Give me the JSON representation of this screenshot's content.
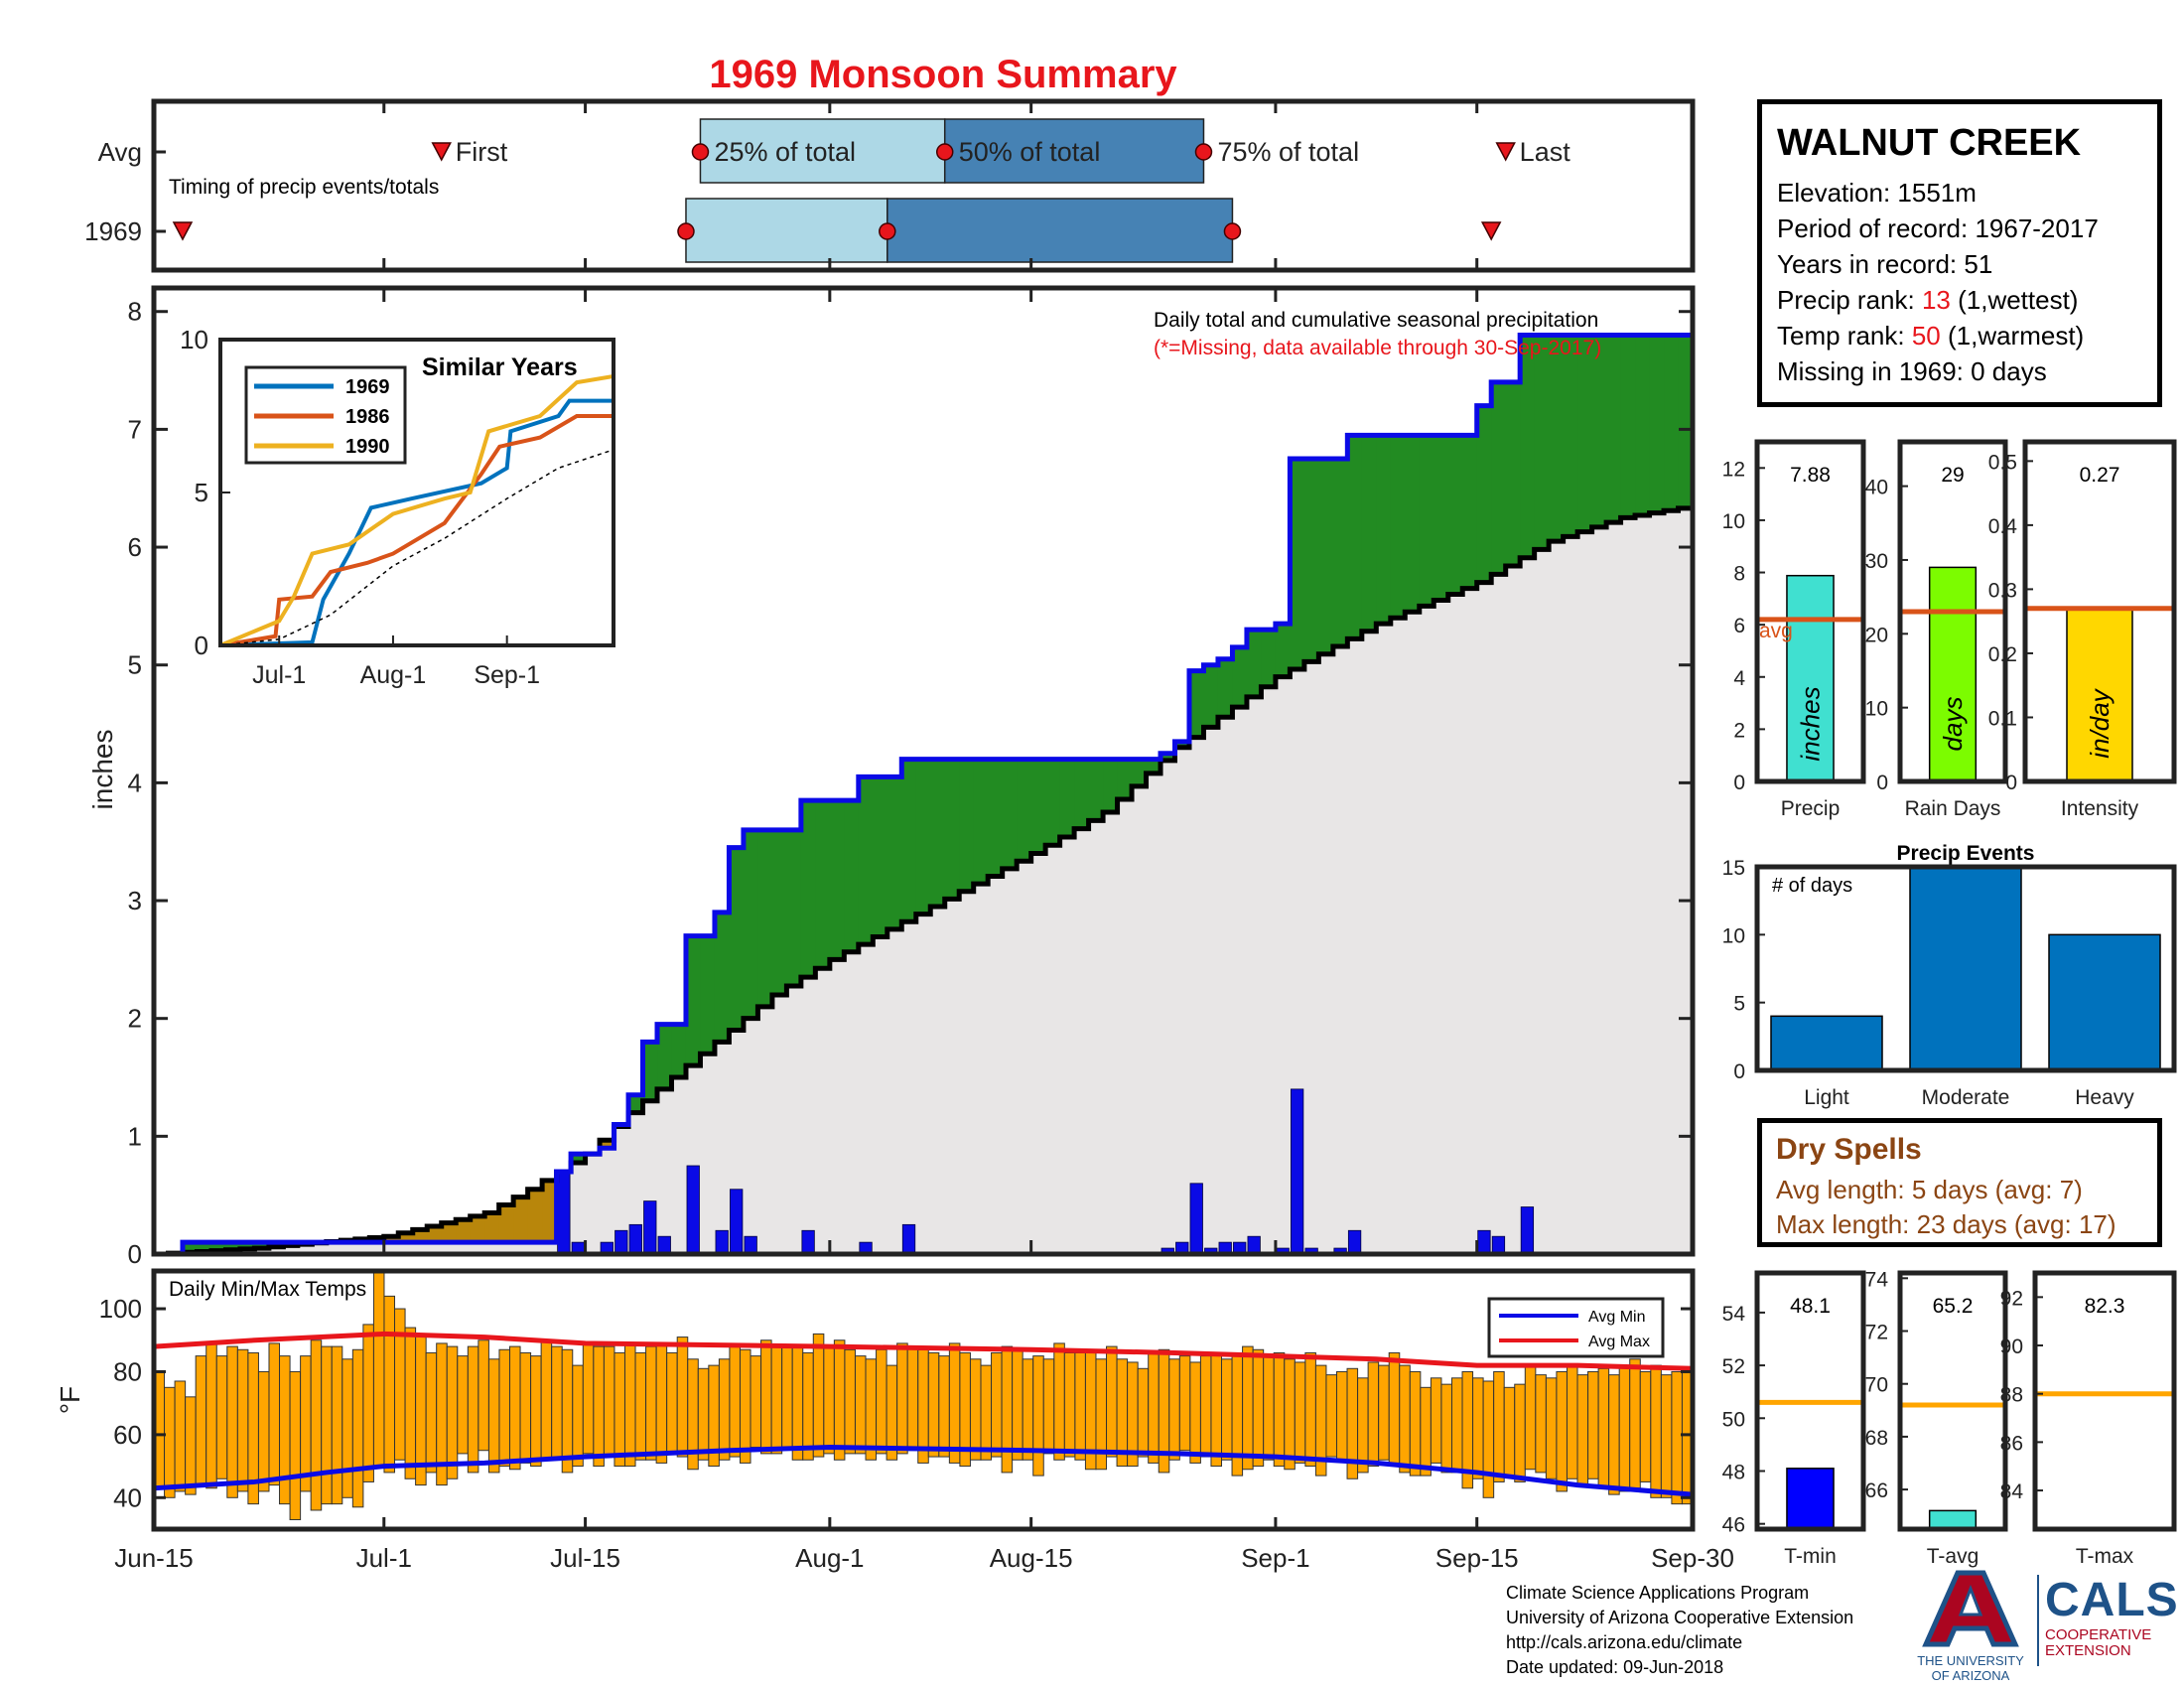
{
  "title": "1969 Monsoon Summary",
  "station": {
    "name": "WALNUT CREEK",
    "elevation_label": "Elevation: ",
    "elevation": "1551m",
    "period_label": "Period of record: ",
    "period": "1967-2017",
    "years_label": "Years in record: ",
    "years": "51",
    "precip_rank_label": "Precip rank: ",
    "precip_rank": "13",
    "precip_rank_note": " (1,wettest)",
    "temp_rank_label": "Temp rank: ",
    "temp_rank": "50",
    "temp_rank_note": " (1,warmest)",
    "missing": "Missing in 1969: 0 days"
  },
  "dry_spells": {
    "title": "Dry Spells",
    "avg_line": "Avg length: 5 days (avg: 7)",
    "max_line": "Max length: 23 days (avg: 17)"
  },
  "footer": {
    "line1": "Climate Science Applications Program",
    "line2": "University of Arizona Cooperative Extension",
    "line3": "http://cals.arizona.edu/climate",
    "line4": " Date updated: 09-Jun-2018"
  },
  "logos": {
    "ua_line1": "THE UNIVERSITY",
    "ua_line2": "OF ARIZONA",
    "cals": "CALS",
    "cals_line1": "COOPERATIVE",
    "cals_line2": "EXTENSION"
  },
  "colors": {
    "title": "#e8161c",
    "cumulative_1969": "#0a0ae6",
    "above_avg_fill": "#228b22",
    "below_avg_fill": "#b8860b",
    "climo_fill": "#e8e6e6",
    "daily_bar": "#0a0ae6",
    "temp_bar": "#ffa500",
    "avg_max": "#e8161c",
    "avg_min": "#0a0ae6",
    "light_blue": "#add8e6",
    "steel_blue": "#4682b4",
    "event_bar": "#0072bd"
  },
  "chart_data": [
    {
      "id": "timing",
      "type": "timeline",
      "subtitle": "Timing of precip events/totals",
      "rows": [
        "Avg",
        "1969"
      ],
      "markers_labels": [
        "First",
        "25% of total",
        "50% of total",
        "75% of total",
        "Last"
      ],
      "avg": {
        "first": "Jul-5",
        "p25": "Jul-23",
        "p50": "Aug-9",
        "p75": "Aug-27",
        "last": "Sep-17"
      },
      "y1969": {
        "first": "Jun-17",
        "p25": "Jul-22",
        "p50": "Aug-5",
        "p75": "Aug-29",
        "last": "Sep-16"
      }
    },
    {
      "id": "seasonal",
      "type": "area",
      "title": "Daily total and cumulative seasonal precipitation",
      "subtitle": "(*=Missing, data available through 30-Sep-2017)",
      "ylabel": "inches",
      "ylim": [
        0,
        8.2
      ],
      "yticks": [
        0,
        1,
        2,
        3,
        4,
        5,
        6,
        7,
        8
      ],
      "xticks": [
        "Jun-15",
        "Jul-1",
        "Jul-15",
        "Aug-1",
        "Aug-15",
        "Sep-1",
        "Sep-15",
        "Sep-30"
      ],
      "series": [
        {
          "name": "1969 cumulative",
          "points": [
            [
              "Jun-15",
              0.0
            ],
            [
              "Jun-17",
              0.1
            ],
            [
              "Jun-30",
              0.1
            ],
            [
              "Jul-12",
              0.1
            ],
            [
              "Jul-13",
              0.7
            ],
            [
              "Jul-14",
              0.85
            ],
            [
              "Jul-16",
              0.9
            ],
            [
              "Jul-17",
              1.1
            ],
            [
              "Jul-18",
              1.35
            ],
            [
              "Jul-19",
              1.8
            ],
            [
              "Jul-20",
              1.95
            ],
            [
              "Jul-22",
              2.7
            ],
            [
              "Jul-24",
              2.9
            ],
            [
              "Jul-25",
              3.45
            ],
            [
              "Jul-26",
              3.6
            ],
            [
              "Jul-30",
              3.85
            ],
            [
              "Aug-3",
              4.05
            ],
            [
              "Aug-6",
              4.2
            ],
            [
              "Aug-24",
              4.25
            ],
            [
              "Aug-25",
              4.35
            ],
            [
              "Aug-26",
              4.95
            ],
            [
              "Aug-27",
              5.0
            ],
            [
              "Aug-28",
              5.05
            ],
            [
              "Aug-29",
              5.15
            ],
            [
              "Aug-30",
              5.3
            ],
            [
              "Sep-1",
              5.35
            ],
            [
              "Sep-2",
              6.75
            ],
            [
              "Sep-6",
              6.95
            ],
            [
              "Sep-15",
              7.2
            ],
            [
              "Sep-16",
              7.4
            ],
            [
              "Sep-18",
              7.8
            ],
            [
              "Sep-30",
              7.8
            ]
          ]
        },
        {
          "name": "avg cumulative",
          "points": [
            [
              "Jun-15",
              0.0
            ],
            [
              "Jun-22",
              0.05
            ],
            [
              "Jul-1",
              0.15
            ],
            [
              "Jul-8",
              0.35
            ],
            [
              "Jul-11",
              0.55
            ],
            [
              "Jul-15",
              0.85
            ],
            [
              "Jul-18",
              1.2
            ],
            [
              "Jul-22",
              1.6
            ],
            [
              "Jul-28",
              2.2
            ],
            [
              "Aug-1",
              2.5
            ],
            [
              "Aug-8",
              2.95
            ],
            [
              "Aug-15",
              3.4
            ],
            [
              "Aug-20",
              3.75
            ],
            [
              "Aug-25",
              4.3
            ],
            [
              "Sep-1",
              4.9
            ],
            [
              "Sep-8",
              5.35
            ],
            [
              "Sep-15",
              5.7
            ],
            [
              "Sep-20",
              6.05
            ],
            [
              "Sep-25",
              6.25
            ],
            [
              "Sep-30",
              6.35
            ]
          ]
        }
      ],
      "daily": [
        [
          "Jul-13",
          0.7
        ],
        [
          "Jul-14",
          0.1
        ],
        [
          "Jul-16",
          0.1
        ],
        [
          "Jul-17",
          0.2
        ],
        [
          "Jul-18",
          0.25
        ],
        [
          "Jul-19",
          0.45
        ],
        [
          "Jul-20",
          0.15
        ],
        [
          "Jul-22",
          0.75
        ],
        [
          "Jul-24",
          0.2
        ],
        [
          "Jul-25",
          0.55
        ],
        [
          "Jul-26",
          0.15
        ],
        [
          "Jul-30",
          0.2
        ],
        [
          "Aug-3",
          0.1
        ],
        [
          "Aug-6",
          0.25
        ],
        [
          "Aug-24",
          0.05
        ],
        [
          "Aug-25",
          0.1
        ],
        [
          "Aug-26",
          0.6
        ],
        [
          "Aug-27",
          0.05
        ],
        [
          "Aug-28",
          0.1
        ],
        [
          "Aug-29",
          0.1
        ],
        [
          "Aug-30",
          0.15
        ],
        [
          "Sep-1",
          0.05
        ],
        [
          "Sep-2",
          1.4
        ],
        [
          "Sep-3",
          0.05
        ],
        [
          "Sep-5",
          0.05
        ],
        [
          "Sep-6",
          0.2
        ],
        [
          "Sep-15",
          0.2
        ],
        [
          "Sep-16",
          0.15
        ],
        [
          "Sep-18",
          0.4
        ]
      ]
    },
    {
      "id": "similar",
      "type": "line",
      "title": "Similar Years",
      "ylim": [
        0,
        10
      ],
      "yticks": [
        0,
        5,
        10
      ],
      "xticks": [
        "Jul-1",
        "Aug-1",
        "Sep-1"
      ],
      "series": [
        {
          "name": "1969",
          "color": "#0072bd",
          "points": [
            [
              "Jun-15",
              0
            ],
            [
              "Jul-10",
              0.1
            ],
            [
              "Jul-13",
              1.5
            ],
            [
              "Jul-20",
              3.0
            ],
            [
              "Jul-26",
              4.5
            ],
            [
              "Aug-6",
              4.8
            ],
            [
              "Aug-25",
              5.3
            ],
            [
              "Sep-1",
              5.8
            ],
            [
              "Sep-2",
              7.0
            ],
            [
              "Sep-15",
              7.5
            ],
            [
              "Sep-18",
              8.0
            ],
            [
              "Sep-30",
              8.0
            ]
          ]
        },
        {
          "name": "1986",
          "color": "#d95319",
          "points": [
            [
              "Jun-15",
              0
            ],
            [
              "Jun-30",
              0.3
            ],
            [
              "Jul-1",
              1.5
            ],
            [
              "Jul-10",
              1.6
            ],
            [
              "Jul-15",
              2.4
            ],
            [
              "Jul-25",
              2.7
            ],
            [
              "Aug-1",
              3.0
            ],
            [
              "Aug-15",
              4.0
            ],
            [
              "Aug-25",
              5.6
            ],
            [
              "Aug-30",
              6.5
            ],
            [
              "Sep-10",
              6.8
            ],
            [
              "Sep-20",
              7.5
            ],
            [
              "Sep-30",
              7.5
            ]
          ]
        },
        {
          "name": "1990",
          "color": "#edb120",
          "points": [
            [
              "Jun-15",
              0
            ],
            [
              "Jul-1",
              0.8
            ],
            [
              "Jul-5",
              1.6
            ],
            [
              "Jul-10",
              3.0
            ],
            [
              "Jul-20",
              3.3
            ],
            [
              "Aug-1",
              4.3
            ],
            [
              "Aug-15",
              4.8
            ],
            [
              "Aug-22",
              5.0
            ],
            [
              "Aug-27",
              7.0
            ],
            [
              "Sep-10",
              7.5
            ],
            [
              "Sep-20",
              8.6
            ],
            [
              "Sep-30",
              8.8
            ]
          ]
        },
        {
          "name": "avg",
          "color": "#000000",
          "dashed": true,
          "points": [
            [
              "Jun-15",
              0
            ],
            [
              "Jul-1",
              0.2
            ],
            [
              "Jul-15",
              1.0
            ],
            [
              "Aug-1",
              2.6
            ],
            [
              "Aug-15",
              3.5
            ],
            [
              "Sep-1",
              4.8
            ],
            [
              "Sep-15",
              5.8
            ],
            [
              "Sep-30",
              6.4
            ]
          ]
        }
      ]
    },
    {
      "id": "temps",
      "type": "bar",
      "title": "Daily Min/Max Temps",
      "ylabel": "°F",
      "ylim": [
        30,
        112
      ],
      "yticks": [
        40,
        60,
        80,
        100
      ],
      "legend": [
        "Avg Min",
        "Avg Max"
      ],
      "min": [
        43,
        40,
        42,
        41,
        44,
        43,
        46,
        40,
        42,
        38,
        42,
        44,
        38,
        33,
        42,
        36,
        38,
        38,
        40,
        37,
        45,
        50,
        48,
        52,
        46,
        44,
        48,
        44,
        46,
        54,
        48,
        55,
        48,
        50,
        49,
        51,
        50,
        52,
        52,
        48,
        50,
        54,
        50,
        53,
        50,
        50,
        52,
        52,
        51,
        54,
        53,
        49,
        52,
        50,
        52,
        53,
        51,
        56,
        54,
        54,
        56,
        52,
        52,
        53,
        54,
        52,
        54,
        54,
        52,
        54,
        52,
        54,
        55,
        51,
        53,
        53,
        51,
        50,
        52,
        52,
        53,
        48,
        52,
        52,
        47,
        54,
        52,
        53,
        52,
        49,
        49,
        53,
        50,
        50,
        53,
        51,
        48,
        52,
        55,
        51,
        53,
        50,
        52,
        47,
        49,
        50,
        52,
        50,
        49,
        51,
        50,
        47,
        53,
        52,
        46,
        48,
        50,
        52,
        51,
        48,
        47,
        47,
        51,
        48,
        48,
        43,
        46,
        40,
        45,
        47,
        45,
        49,
        48,
        46,
        42,
        46,
        44,
        46,
        43,
        41,
        42,
        43,
        45,
        40,
        40,
        38,
        38
      ],
      "max": [
        80,
        75,
        77,
        72,
        85,
        89,
        85,
        88,
        87,
        86,
        80,
        89,
        85,
        80,
        85,
        90,
        88,
        88,
        84,
        87,
        95,
        112,
        104,
        100,
        94,
        92,
        86,
        89,
        88,
        85,
        88,
        90,
        84,
        87,
        88,
        86,
        85,
        90,
        88,
        87,
        82,
        89,
        88,
        88,
        86,
        89,
        86,
        88,
        89,
        86,
        91,
        84,
        81,
        82,
        84,
        88,
        87,
        85,
        90,
        88,
        88,
        88,
        86,
        92,
        88,
        90,
        87,
        85,
        84,
        87,
        82,
        89,
        88,
        87,
        86,
        85,
        89,
        86,
        84,
        82,
        86,
        88,
        87,
        84,
        85,
        84,
        89,
        86,
        86,
        87,
        84,
        88,
        84,
        83,
        81,
        86,
        87,
        84,
        85,
        83,
        85,
        86,
        84,
        85,
        88,
        87,
        85,
        86,
        84,
        83,
        86,
        82,
        79,
        80,
        81,
        78,
        83,
        82,
        86,
        82,
        80,
        75,
        78,
        76,
        78,
        80,
        78,
        77,
        80,
        75,
        76,
        82,
        79,
        78,
        80,
        82,
        79,
        80,
        81,
        79,
        82,
        84,
        80,
        82,
        79,
        80,
        80
      ],
      "avg_min_points": [
        [
          "Jun-15",
          43
        ],
        [
          "Jun-22",
          45
        ],
        [
          "Jun-27",
          48
        ],
        [
          "Jul-1",
          50
        ],
        [
          "Jul-8",
          51
        ],
        [
          "Jul-15",
          53
        ],
        [
          "Jul-25",
          55
        ],
        [
          "Aug-1",
          56
        ],
        [
          "Aug-15",
          55
        ],
        [
          "Aug-25",
          54
        ],
        [
          "Sep-1",
          53
        ],
        [
          "Sep-8",
          51
        ],
        [
          "Sep-15",
          48
        ],
        [
          "Sep-22",
          44
        ],
        [
          "Sep-30",
          41
        ]
      ],
      "avg_max_points": [
        [
          "Jun-15",
          88
        ],
        [
          "Jun-22",
          90
        ],
        [
          "Jul-1",
          92
        ],
        [
          "Jul-8",
          91
        ],
        [
          "Jul-15",
          89
        ],
        [
          "Aug-1",
          88
        ],
        [
          "Aug-15",
          87
        ],
        [
          "Aug-25",
          86
        ],
        [
          "Sep-1",
          85
        ],
        [
          "Sep-8",
          84
        ],
        [
          "Sep-15",
          82
        ],
        [
          "Sep-22",
          82
        ],
        [
          "Sep-30",
          81
        ]
      ]
    },
    {
      "id": "precip_bar",
      "type": "bar",
      "category": "Precip",
      "value": 7.88,
      "value_label": "7.88",
      "avg": 6.2,
      "avg_label": "avg",
      "unit": "inches",
      "ylim": [
        0,
        13
      ],
      "yticks": [
        0,
        2,
        4,
        6,
        8,
        10,
        12
      ],
      "color": "#40e0d0"
    },
    {
      "id": "raindays_bar",
      "type": "bar",
      "category": "Rain Days",
      "value": 29,
      "value_label": "29",
      "avg": 23,
      "unit": "days",
      "ylim": [
        0,
        46
      ],
      "yticks": [
        0,
        10,
        20,
        30,
        40
      ],
      "color": "#7cfc00"
    },
    {
      "id": "intensity_bar",
      "type": "bar",
      "category": "Intensity",
      "value": 0.27,
      "value_label": "0.27",
      "avg": 0.27,
      "unit": "in/day",
      "ylim": [
        0,
        0.53
      ],
      "yticks": [
        0,
        0.1,
        0.2,
        0.3,
        0.4,
        0.5
      ],
      "color": "#ffd700"
    },
    {
      "id": "events",
      "type": "bar",
      "title": "Precip Events",
      "note": "# of days",
      "categories": [
        "Light",
        "Moderate",
        "Heavy"
      ],
      "values": [
        4,
        15,
        10
      ],
      "ylim": [
        0,
        15
      ],
      "yticks": [
        0,
        5,
        10,
        15
      ]
    },
    {
      "id": "tmin_bar",
      "type": "bar",
      "category": "T-min",
      "value": 48.1,
      "value_label": "48.1",
      "avg": 50.6,
      "ylim": [
        45.8,
        55.5
      ],
      "yticks": [
        46,
        48,
        50,
        52,
        54
      ],
      "color": "#0000ff"
    },
    {
      "id": "tavg_bar",
      "type": "bar",
      "category": "T-avg",
      "value": 65.2,
      "value_label": "65.2",
      "avg": 69.2,
      "ylim": [
        64.5,
        74.2
      ],
      "yticks": [
        66,
        68,
        70,
        72,
        74
      ],
      "color": "#40e0d0"
    },
    {
      "id": "tmax_bar",
      "type": "bar",
      "category": "T-max",
      "value": 82.3,
      "value_label": "82.3",
      "avg": 88,
      "ylim": [
        82.4,
        93
      ],
      "yticks": [
        84,
        86,
        88,
        90,
        92
      ],
      "color": "#ff8c00"
    }
  ]
}
